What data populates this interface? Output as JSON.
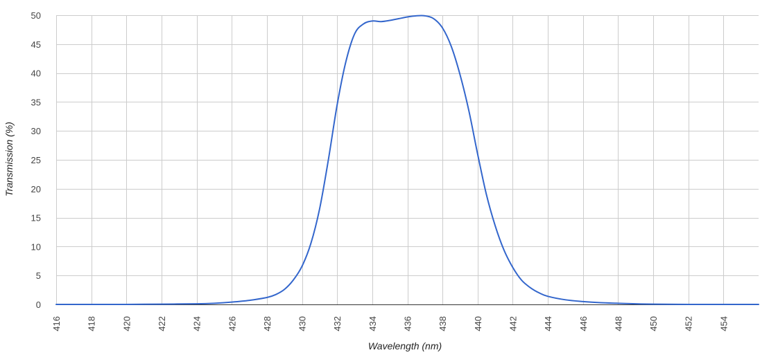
{
  "chart_data": {
    "type": "line",
    "title": "",
    "xlabel": "Wavelength (nm)",
    "ylabel": "Transmission (%)",
    "xlim": [
      416,
      456
    ],
    "ylim": [
      0,
      50
    ],
    "grid": true,
    "legend": "none",
    "x_ticks": [
      "416",
      "418",
      "420",
      "422",
      "424",
      "426",
      "428",
      "430",
      "432",
      "434",
      "436",
      "438",
      "440",
      "442",
      "444",
      "446",
      "448",
      "450",
      "452",
      "454"
    ],
    "y_ticks": [
      "0",
      "5",
      "10",
      "15",
      "20",
      "25",
      "30",
      "35",
      "40",
      "45",
      "50"
    ],
    "colors": {
      "series": "#3366cc",
      "grid": "#cccccc",
      "axis": "#333333"
    },
    "series": [
      {
        "x": [
          416,
          418,
          420,
          422,
          424,
          425,
          426,
          427,
          428,
          428.5,
          429,
          429.5,
          430,
          430.5,
          431,
          431.5,
          432,
          432.5,
          433,
          433.5,
          434,
          434.5,
          435,
          435.5,
          436,
          436.5,
          437,
          437.5,
          438,
          438.5,
          439,
          439.5,
          440,
          440.5,
          441,
          441.5,
          442,
          442.5,
          443,
          443.5,
          444,
          445,
          446,
          447,
          448,
          449,
          450,
          452,
          454,
          456
        ],
        "y": [
          0,
          0,
          0,
          0.05,
          0.1,
          0.2,
          0.4,
          0.7,
          1.2,
          1.7,
          2.6,
          4.2,
          6.6,
          10.5,
          16.5,
          25.0,
          34.5,
          42.0,
          46.8,
          48.5,
          49.0,
          48.9,
          49.1,
          49.4,
          49.7,
          49.9,
          49.9,
          49.4,
          47.8,
          44.6,
          39.7,
          33.5,
          26.0,
          19.0,
          13.6,
          9.4,
          6.4,
          4.2,
          2.9,
          2.0,
          1.4,
          0.8,
          0.5,
          0.3,
          0.2,
          0.1,
          0.05,
          0,
          0,
          0
        ]
      }
    ]
  }
}
